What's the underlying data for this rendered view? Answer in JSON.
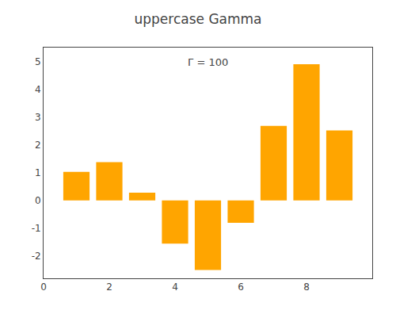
{
  "chart_data": {
    "type": "bar",
    "title": "uppercase Gamma",
    "annotations": [
      "Γ = 100"
    ],
    "x": [
      1,
      2,
      3,
      4,
      5,
      6,
      7,
      8,
      9
    ],
    "values": [
      1.03,
      1.38,
      0.28,
      -1.55,
      -2.5,
      -0.8,
      2.68,
      4.9,
      2.52
    ],
    "color": "#FFA500",
    "xlim": [
      0,
      10
    ],
    "xticks": [
      0,
      2,
      4,
      6,
      8
    ],
    "ylim": [
      -2.8,
      5.5
    ],
    "yticks": [
      -2,
      -1,
      0,
      1,
      2,
      3,
      4,
      5
    ],
    "grid": false
  }
}
